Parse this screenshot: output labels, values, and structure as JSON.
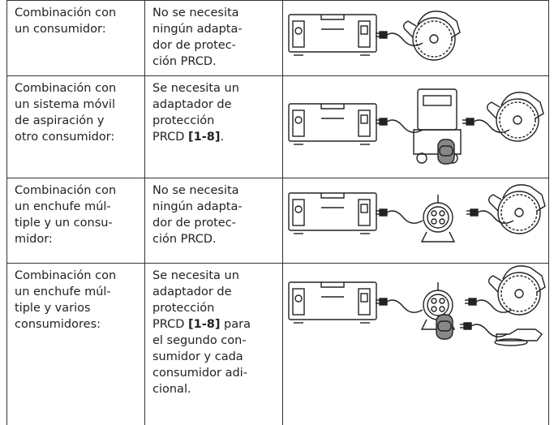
{
  "table": {
    "rows": [
      {
        "combination": [
          [
            {
              "text": "Combinación con"
            }
          ],
          [
            {
              "text": "un consumidor:"
            }
          ]
        ],
        "requirement": [
          [
            {
              "text": "No se necesita"
            }
          ],
          [
            {
              "text": "ningún adapta-"
            }
          ],
          [
            {
              "text": "dor de protec-"
            }
          ],
          [
            {
              "text": "ción PRCD."
            }
          ]
        ]
      },
      {
        "combination": [
          [
            {
              "text": "Combinación con"
            }
          ],
          [
            {
              "text": "un sistema móvil"
            }
          ],
          [
            {
              "text": "de aspiración y"
            }
          ],
          [
            {
              "text": "otro consumidor:"
            }
          ]
        ],
        "requirement": [
          [
            {
              "text": "Se necesita un"
            }
          ],
          [
            {
              "text": "adaptador de"
            }
          ],
          [
            {
              "text": "protección"
            }
          ],
          [
            {
              "text": "PRCD "
            },
            {
              "text": "[1-8]",
              "bold": true
            },
            {
              "text": "."
            }
          ]
        ]
      },
      {
        "combination": [
          [
            {
              "text": "Combinación con"
            }
          ],
          [
            {
              "text": "un enchufe múl-"
            }
          ],
          [
            {
              "text": "tiple y un consu-"
            }
          ],
          [
            {
              "text": "midor:"
            }
          ]
        ],
        "requirement": [
          [
            {
              "text": "No se necesita"
            }
          ],
          [
            {
              "text": "ningún adapta-"
            }
          ],
          [
            {
              "text": "dor de protec-"
            }
          ],
          [
            {
              "text": "ción PRCD."
            }
          ]
        ]
      },
      {
        "combination": [
          [
            {
              "text": "Combinación con"
            }
          ],
          [
            {
              "text": "un enchufe múl-"
            }
          ],
          [
            {
              "text": "tiple y varios"
            }
          ],
          [
            {
              "text": "consumidores:"
            }
          ]
        ],
        "requirement": [
          [
            {
              "text": "Se necesita un"
            }
          ],
          [
            {
              "text": "adaptador de"
            }
          ],
          [
            {
              "text": "protección"
            }
          ],
          [
            {
              "text": "PRCD "
            },
            {
              "text": "[1-8]",
              "bold": true
            },
            {
              "text": " para"
            }
          ],
          [
            {
              "text": "el segundo con-"
            }
          ],
          [
            {
              "text": "sumidor y cada"
            }
          ],
          [
            {
              "text": "consumidor adi-"
            }
          ],
          [
            {
              "text": "cional."
            }
          ]
        ]
      }
    ]
  }
}
